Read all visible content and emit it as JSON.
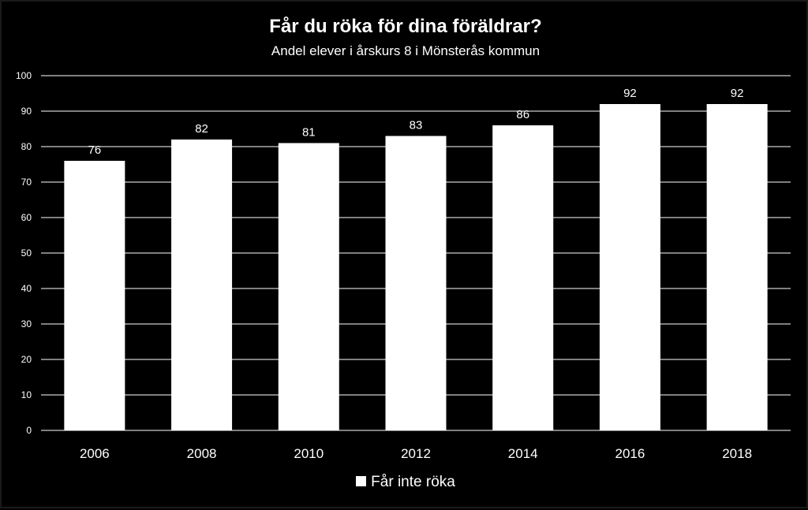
{
  "chart_data": {
    "type": "bar",
    "title": "Får du röka för dina föräldrar?",
    "subtitle": "Andel elever i årskurs 8 i Mönsterås kommun",
    "categories": [
      "2006",
      "2008",
      "2010",
      "2012",
      "2014",
      "2016",
      "2018"
    ],
    "series": [
      {
        "name": "Får inte röka",
        "values": [
          76,
          82,
          81,
          83,
          86,
          92,
          92
        ],
        "color": "#ffffff"
      }
    ],
    "ylim": [
      0,
      100
    ],
    "yticks": [
      0,
      10,
      20,
      30,
      40,
      50,
      60,
      70,
      80,
      90,
      100
    ],
    "grid": true,
    "legend_position": "bottom",
    "data_labels": true,
    "background": "#000000",
    "text_color": "#ffffff",
    "grid_color": "#ffffff"
  }
}
